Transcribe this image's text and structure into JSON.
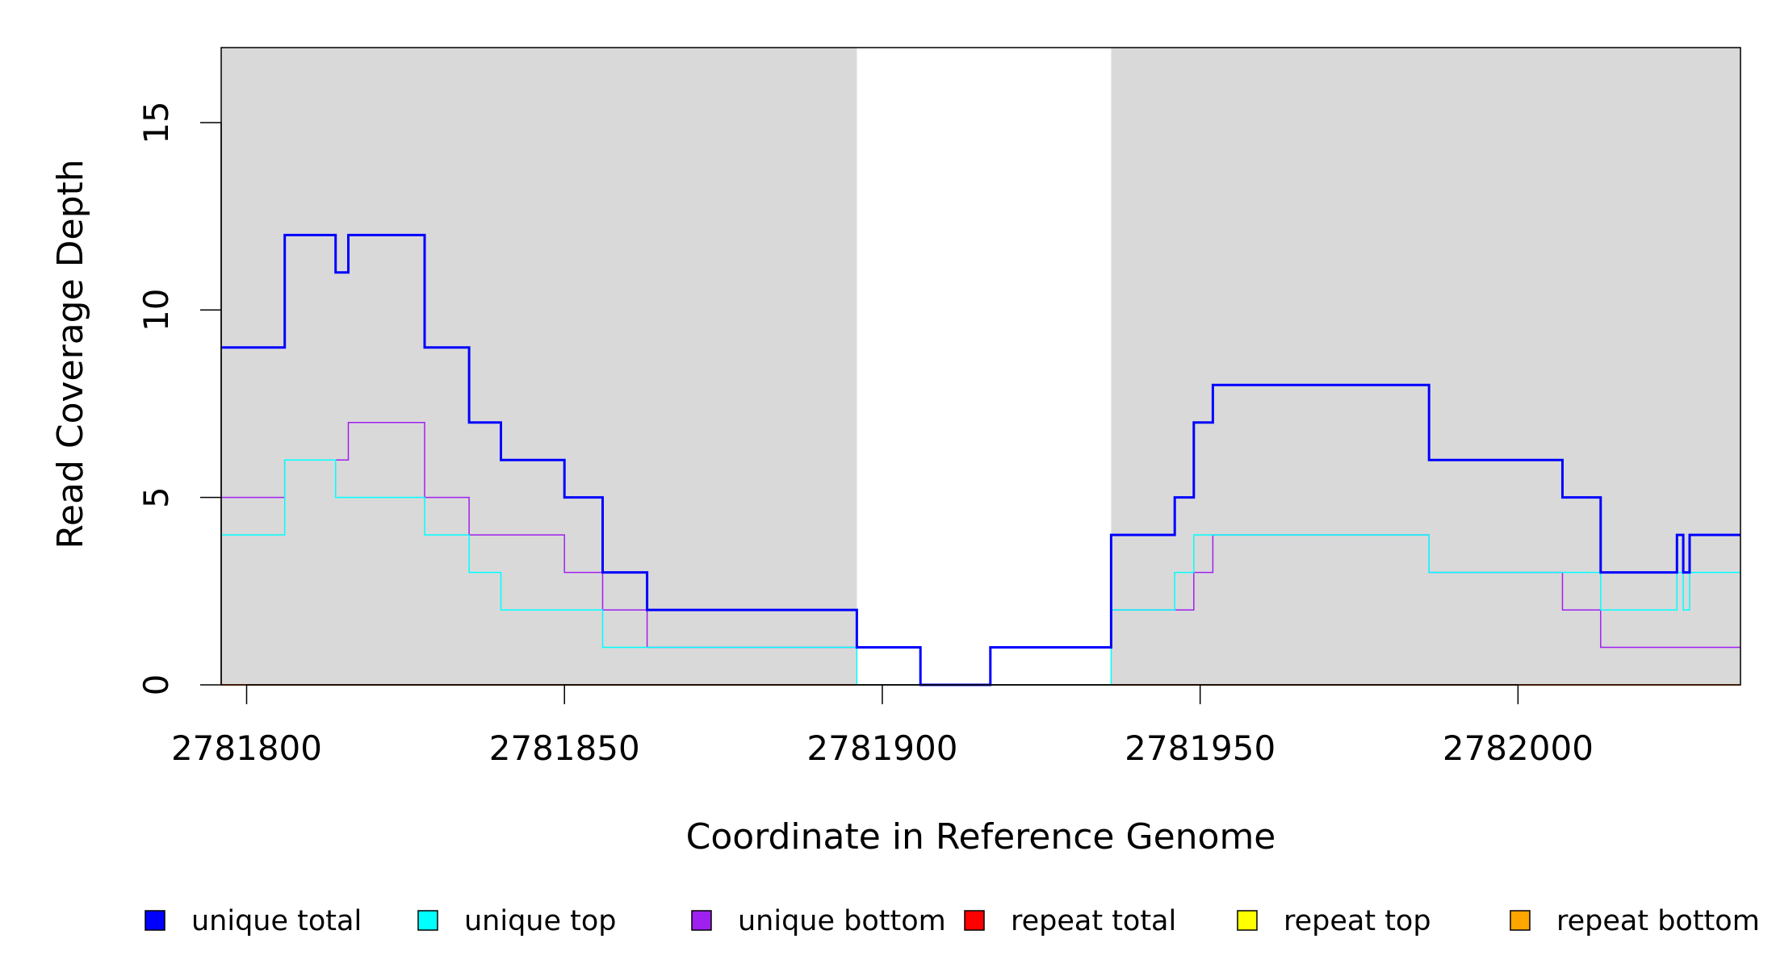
{
  "chart_data": {
    "type": "line",
    "title": "",
    "xlabel": "Coordinate in Reference Genome",
    "ylabel": "Read Coverage Depth",
    "xlim": [
      2781796,
      2782035
    ],
    "ylim": [
      0,
      17
    ],
    "x_ticks": [
      2781800,
      2781850,
      2781900,
      2781950,
      2782000
    ],
    "x_tick_labels": [
      "2781800",
      "2781850",
      "2781900",
      "2781950",
      "2782000"
    ],
    "y_ticks": [
      0,
      5,
      10,
      15
    ],
    "y_tick_labels": [
      "0",
      "5",
      "10",
      "15"
    ],
    "shaded_regions": [
      [
        2781796,
        2781896
      ],
      [
        2781936,
        2782035
      ]
    ],
    "grid": false,
    "legend_position": "bottom",
    "series": [
      {
        "name": "unique total",
        "color": "#0000FF",
        "line_width": 2,
        "steps": [
          [
            2781796,
            9
          ],
          [
            2781806,
            12
          ],
          [
            2781814,
            11
          ],
          [
            2781816,
            12
          ],
          [
            2781828,
            9
          ],
          [
            2781835,
            7
          ],
          [
            2781840,
            6
          ],
          [
            2781850,
            5
          ],
          [
            2781856,
            3
          ],
          [
            2781863,
            2
          ],
          [
            2781896,
            1
          ],
          [
            2781906,
            0
          ],
          [
            2781917,
            1
          ],
          [
            2781936,
            4
          ],
          [
            2781946,
            5
          ],
          [
            2781949,
            7
          ],
          [
            2781952,
            8
          ],
          [
            2781986,
            6
          ],
          [
            2782007,
            5
          ],
          [
            2782013,
            3
          ],
          [
            2782025,
            4
          ],
          [
            2782026,
            3
          ],
          [
            2782027,
            4
          ],
          [
            2782035,
            4
          ]
        ]
      },
      {
        "name": "unique top",
        "color": "#00FFFF",
        "line_width": 1,
        "steps": [
          [
            2781796,
            4
          ],
          [
            2781806,
            6
          ],
          [
            2781814,
            5
          ],
          [
            2781828,
            4
          ],
          [
            2781835,
            3
          ],
          [
            2781840,
            2
          ],
          [
            2781856,
            1
          ],
          [
            2781863,
            1
          ],
          [
            2781896,
            0
          ],
          [
            2781936,
            0
          ],
          [
            2781936,
            2
          ],
          [
            2781946,
            3
          ],
          [
            2781949,
            4
          ],
          [
            2781986,
            3
          ],
          [
            2782013,
            2
          ],
          [
            2782025,
            3
          ],
          [
            2782026,
            2
          ],
          [
            2782027,
            3
          ],
          [
            2782035,
            3
          ]
        ]
      },
      {
        "name": "unique bottom",
        "color": "#A020F0",
        "line_width": 1,
        "steps": [
          [
            2781796,
            5
          ],
          [
            2781806,
            6
          ],
          [
            2781816,
            7
          ],
          [
            2781828,
            5
          ],
          [
            2781835,
            4
          ],
          [
            2781850,
            3
          ],
          [
            2781856,
            2
          ],
          [
            2781863,
            1
          ],
          [
            2781906,
            0
          ],
          [
            2781917,
            1
          ],
          [
            2781936,
            2
          ],
          [
            2781949,
            3
          ],
          [
            2781952,
            4
          ],
          [
            2781986,
            3
          ],
          [
            2782007,
            2
          ],
          [
            2782013,
            1
          ],
          [
            2782035,
            1
          ]
        ]
      },
      {
        "name": "repeat total",
        "color": "#FF0000",
        "line_width": 1,
        "steps": [
          [
            2781796,
            0
          ],
          [
            2782035,
            0
          ]
        ]
      },
      {
        "name": "repeat top",
        "color": "#FFFF00",
        "line_width": 1,
        "steps": [
          [
            2781796,
            0
          ],
          [
            2782035,
            0
          ]
        ]
      },
      {
        "name": "repeat bottom",
        "color": "#FFA500",
        "line_width": 1,
        "steps": [
          [
            2781796,
            0
          ],
          [
            2782035,
            0
          ]
        ]
      }
    ]
  }
}
